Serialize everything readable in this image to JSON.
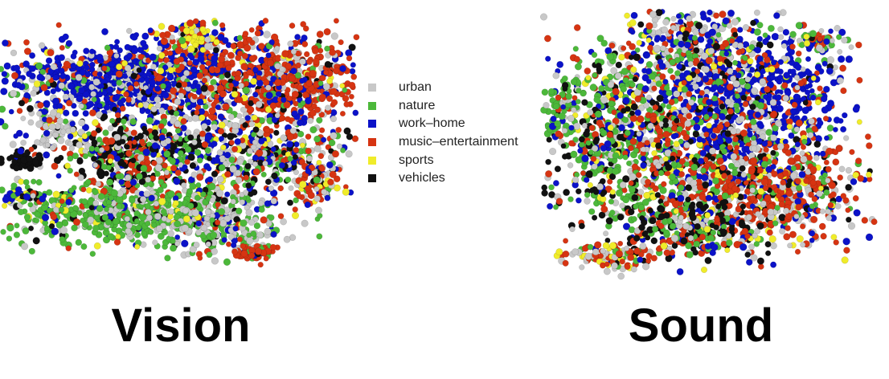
{
  "chart_data": [
    {
      "type": "scatter",
      "title": "Vision",
      "legend_position": "right",
      "categories": [
        {
          "name": "urban",
          "color": "#c8c8c8"
        },
        {
          "name": "nature",
          "color": "#4cb83a"
        },
        {
          "name": "work–home",
          "color": "#0b12c8"
        },
        {
          "name": "music–entertainment",
          "color": "#d63412"
        },
        {
          "name": "sports",
          "color": "#f0ec2a"
        },
        {
          "name": "vehicles",
          "color": "#111111"
        }
      ],
      "grid": false,
      "axes_visible": false
    },
    {
      "type": "scatter",
      "title": "Sound",
      "legend_position": "shared",
      "categories": [
        {
          "name": "urban",
          "color": "#c8c8c8"
        },
        {
          "name": "nature",
          "color": "#4cb83a"
        },
        {
          "name": "work–home",
          "color": "#0b12c8"
        },
        {
          "name": "music–entertainment",
          "color": "#d63412"
        },
        {
          "name": "sports",
          "color": "#f0ec2a"
        },
        {
          "name": "vehicles",
          "color": "#111111"
        }
      ],
      "grid": false,
      "axes_visible": false
    }
  ],
  "legend": {
    "items": [
      {
        "label": "urban",
        "color": "#c8c8c8"
      },
      {
        "label": "nature",
        "color": "#4cb83a"
      },
      {
        "label": "work–home",
        "color": "#0b12c8"
      },
      {
        "label": "music–entertainment",
        "color": "#d63412"
      },
      {
        "label": "sports",
        "color": "#f0ec2a"
      },
      {
        "label": "vehicles",
        "color": "#111111"
      }
    ]
  },
  "titles": {
    "vision": "Vision",
    "sound": "Sound"
  }
}
